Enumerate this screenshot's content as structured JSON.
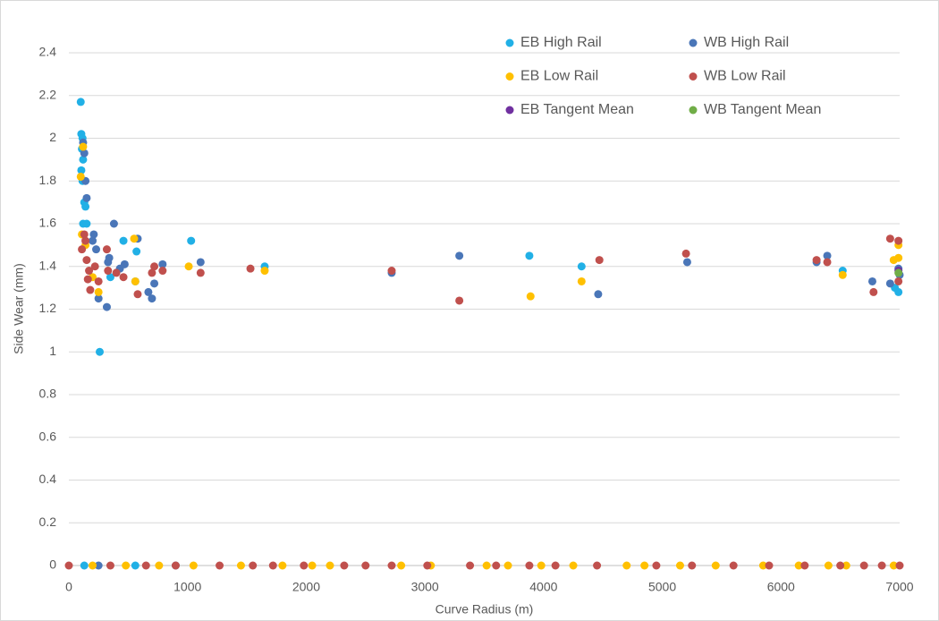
{
  "chart_data": {
    "type": "scatter",
    "xlabel": "Curve Radius (m)",
    "ylabel": "Side Wear (mm)",
    "xlim": [
      0,
      7000
    ],
    "xticks": [
      0,
      1000,
      2000,
      3000,
      4000,
      5000,
      6000,
      7000
    ],
    "ylim": [
      0,
      2.4
    ],
    "yticks": [
      0,
      0.2,
      0.4,
      0.6,
      0.8,
      1,
      1.2,
      1.4,
      1.6,
      1.8,
      2,
      2.2,
      2.4
    ],
    "grid": true,
    "legend": "top-right",
    "series": [
      {
        "name": "EB High Rail",
        "color": "#21b0e6",
        "x": [
          100,
          105,
          115,
          110,
          120,
          105,
          115,
          130,
          140,
          120,
          150,
          260,
          350,
          460,
          570,
          560,
          1030,
          1650,
          3880,
          4320,
          6520,
          6960,
          6990,
          130,
          560
        ],
        "values": [
          2.17,
          2.02,
          2.0,
          1.95,
          1.9,
          1.85,
          1.8,
          1.7,
          1.68,
          1.6,
          1.6,
          1.0,
          1.35,
          1.52,
          1.47,
          1.33,
          1.52,
          1.4,
          1.45,
          1.4,
          1.38,
          1.3,
          1.28,
          0,
          0
        ]
      },
      {
        "name": "WB High Rail",
        "color": "#4a76b8",
        "x": [
          120,
          130,
          140,
          150,
          210,
          200,
          230,
          250,
          320,
          340,
          330,
          380,
          430,
          470,
          580,
          670,
          700,
          720,
          790,
          1110,
          2720,
          3290,
          4460,
          5210,
          6300,
          6390,
          6770,
          6920,
          6990,
          7000,
          250,
          900
        ],
        "values": [
          1.98,
          1.93,
          1.8,
          1.72,
          1.55,
          1.52,
          1.48,
          1.25,
          1.21,
          1.44,
          1.42,
          1.6,
          1.39,
          1.41,
          1.53,
          1.28,
          1.25,
          1.32,
          1.41,
          1.42,
          1.37,
          1.45,
          1.27,
          1.42,
          1.42,
          1.45,
          1.33,
          1.32,
          1.39,
          1.36,
          0,
          0
        ]
      },
      {
        "name": "EB Low Rail",
        "color": "#ffc000",
        "x": [
          100,
          120,
          110,
          140,
          200,
          250,
          550,
          560,
          1010,
          1650,
          3890,
          4320,
          6520,
          6950,
          6990,
          6990,
          200,
          480,
          760,
          1050,
          1450,
          1800,
          2050,
          2200,
          2800,
          3050,
          3520,
          3700,
          3980,
          4250,
          4700,
          4850,
          5150,
          5450,
          5850,
          6150,
          6400,
          6550,
          6950
        ],
        "values": [
          1.82,
          1.96,
          1.55,
          1.5,
          1.35,
          1.28,
          1.53,
          1.33,
          1.4,
          1.38,
          1.26,
          1.33,
          1.36,
          1.43,
          1.5,
          1.44,
          0,
          0,
          0,
          0,
          0,
          0,
          0,
          0,
          0,
          0,
          0,
          0,
          0,
          0,
          0,
          0,
          0,
          0,
          0,
          0,
          0,
          0,
          0
        ]
      },
      {
        "name": "WB Low Rail",
        "color": "#c0504d",
        "x": [
          110,
          130,
          140,
          150,
          170,
          160,
          180,
          220,
          250,
          320,
          330,
          400,
          460,
          580,
          700,
          720,
          790,
          1110,
          1530,
          2720,
          3290,
          4470,
          5200,
          6300,
          6390,
          6780,
          6920,
          6990,
          6990,
          0,
          350,
          650,
          900,
          1270,
          1550,
          1720,
          1980,
          2320,
          2500,
          2720,
          3020,
          3380,
          3600,
          3880,
          4100,
          4450,
          4950,
          5250,
          5600,
          5900,
          6200,
          6500,
          6700,
          6850,
          7000
        ],
        "values": [
          1.48,
          1.55,
          1.52,
          1.43,
          1.38,
          1.34,
          1.29,
          1.4,
          1.33,
          1.48,
          1.38,
          1.37,
          1.35,
          1.27,
          1.37,
          1.4,
          1.38,
          1.37,
          1.39,
          1.38,
          1.24,
          1.43,
          1.46,
          1.43,
          1.42,
          1.28,
          1.53,
          1.52,
          1.33,
          0,
          0,
          0,
          0,
          0,
          0,
          0,
          0,
          0,
          0,
          0,
          0,
          0,
          0,
          0,
          0,
          0,
          0,
          0,
          0,
          0,
          0,
          0,
          0,
          0,
          0
        ]
      },
      {
        "name": "EB Tangent Mean",
        "color": "#7030a0",
        "x": [
          6990
        ],
        "values": [
          1.38
        ]
      },
      {
        "name": "WB Tangent Mean",
        "color": "#70ad47",
        "x": [
          6990
        ],
        "values": [
          1.37
        ]
      }
    ]
  }
}
